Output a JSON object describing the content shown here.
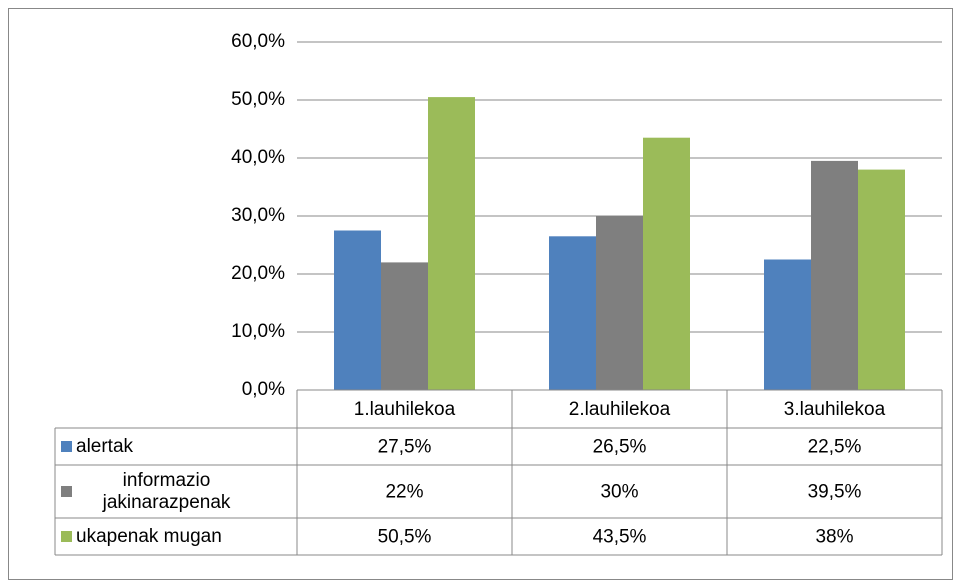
{
  "chart_data": {
    "type": "bar",
    "categories": [
      "1.lauhilekoa",
      "2.lauhilekoa",
      "3.lauhilekoa"
    ],
    "series": [
      {
        "name": "alertak",
        "color": "#4f81bd",
        "values": [
          27.5,
          26.5,
          22.5
        ],
        "value_labels": [
          "27,5%",
          "26,5%",
          "22,5%"
        ]
      },
      {
        "name": "informazio jakinarazpenak",
        "color": "#7f7f7f",
        "values": [
          22,
          30,
          39.5
        ],
        "value_labels": [
          "22%",
          "30%",
          "39,5%"
        ]
      },
      {
        "name": "ukapenak mugan",
        "color": "#9bbb59",
        "values": [
          50.5,
          43.5,
          38
        ],
        "value_labels": [
          "50,5%",
          "43,5%",
          "38%"
        ]
      }
    ],
    "ylim": [
      0,
      60
    ],
    "yticks": [
      {
        "value": 0,
        "label": "0,0%"
      },
      {
        "value": 10,
        "label": "10,0%"
      },
      {
        "value": 20,
        "label": "20,0%"
      },
      {
        "value": 30,
        "label": "30,0%"
      },
      {
        "value": 40,
        "label": "40,0%"
      },
      {
        "value": 50,
        "label": "50,0%"
      },
      {
        "value": 60,
        "label": "60,0%"
      }
    ],
    "grid": true
  }
}
